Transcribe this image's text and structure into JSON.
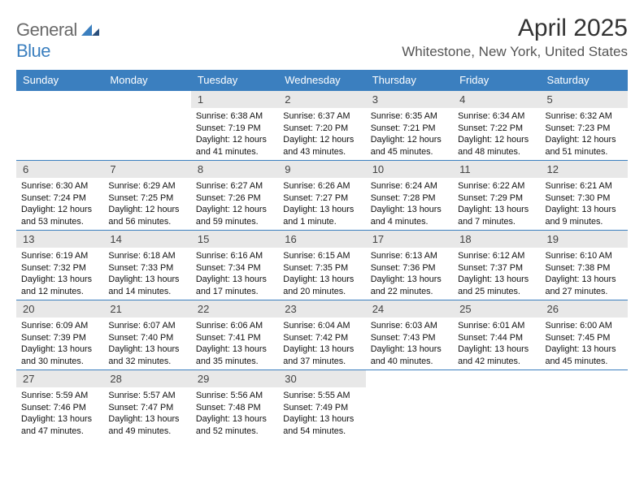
{
  "logo": {
    "part1": "General",
    "part2": "Blue"
  },
  "title": "April 2025",
  "location": "Whitestone, New York, United States",
  "colors": {
    "header_bg": "#3b7fbf",
    "daynum_bg": "#e8e8e8",
    "border": "#3b7fbf"
  },
  "dayNames": [
    "Sunday",
    "Monday",
    "Tuesday",
    "Wednesday",
    "Thursday",
    "Friday",
    "Saturday"
  ],
  "weeks": [
    [
      {
        "n": "",
        "empty": true
      },
      {
        "n": "",
        "empty": true
      },
      {
        "n": "1",
        "sr": "Sunrise: 6:38 AM",
        "ss": "Sunset: 7:19 PM",
        "dl": "Daylight: 12 hours and 41 minutes."
      },
      {
        "n": "2",
        "sr": "Sunrise: 6:37 AM",
        "ss": "Sunset: 7:20 PM",
        "dl": "Daylight: 12 hours and 43 minutes."
      },
      {
        "n": "3",
        "sr": "Sunrise: 6:35 AM",
        "ss": "Sunset: 7:21 PM",
        "dl": "Daylight: 12 hours and 45 minutes."
      },
      {
        "n": "4",
        "sr": "Sunrise: 6:34 AM",
        "ss": "Sunset: 7:22 PM",
        "dl": "Daylight: 12 hours and 48 minutes."
      },
      {
        "n": "5",
        "sr": "Sunrise: 6:32 AM",
        "ss": "Sunset: 7:23 PM",
        "dl": "Daylight: 12 hours and 51 minutes."
      }
    ],
    [
      {
        "n": "6",
        "sr": "Sunrise: 6:30 AM",
        "ss": "Sunset: 7:24 PM",
        "dl": "Daylight: 12 hours and 53 minutes."
      },
      {
        "n": "7",
        "sr": "Sunrise: 6:29 AM",
        "ss": "Sunset: 7:25 PM",
        "dl": "Daylight: 12 hours and 56 minutes."
      },
      {
        "n": "8",
        "sr": "Sunrise: 6:27 AM",
        "ss": "Sunset: 7:26 PM",
        "dl": "Daylight: 12 hours and 59 minutes."
      },
      {
        "n": "9",
        "sr": "Sunrise: 6:26 AM",
        "ss": "Sunset: 7:27 PM",
        "dl": "Daylight: 13 hours and 1 minute."
      },
      {
        "n": "10",
        "sr": "Sunrise: 6:24 AM",
        "ss": "Sunset: 7:28 PM",
        "dl": "Daylight: 13 hours and 4 minutes."
      },
      {
        "n": "11",
        "sr": "Sunrise: 6:22 AM",
        "ss": "Sunset: 7:29 PM",
        "dl": "Daylight: 13 hours and 7 minutes."
      },
      {
        "n": "12",
        "sr": "Sunrise: 6:21 AM",
        "ss": "Sunset: 7:30 PM",
        "dl": "Daylight: 13 hours and 9 minutes."
      }
    ],
    [
      {
        "n": "13",
        "sr": "Sunrise: 6:19 AM",
        "ss": "Sunset: 7:32 PM",
        "dl": "Daylight: 13 hours and 12 minutes."
      },
      {
        "n": "14",
        "sr": "Sunrise: 6:18 AM",
        "ss": "Sunset: 7:33 PM",
        "dl": "Daylight: 13 hours and 14 minutes."
      },
      {
        "n": "15",
        "sr": "Sunrise: 6:16 AM",
        "ss": "Sunset: 7:34 PM",
        "dl": "Daylight: 13 hours and 17 minutes."
      },
      {
        "n": "16",
        "sr": "Sunrise: 6:15 AM",
        "ss": "Sunset: 7:35 PM",
        "dl": "Daylight: 13 hours and 20 minutes."
      },
      {
        "n": "17",
        "sr": "Sunrise: 6:13 AM",
        "ss": "Sunset: 7:36 PM",
        "dl": "Daylight: 13 hours and 22 minutes."
      },
      {
        "n": "18",
        "sr": "Sunrise: 6:12 AM",
        "ss": "Sunset: 7:37 PM",
        "dl": "Daylight: 13 hours and 25 minutes."
      },
      {
        "n": "19",
        "sr": "Sunrise: 6:10 AM",
        "ss": "Sunset: 7:38 PM",
        "dl": "Daylight: 13 hours and 27 minutes."
      }
    ],
    [
      {
        "n": "20",
        "sr": "Sunrise: 6:09 AM",
        "ss": "Sunset: 7:39 PM",
        "dl": "Daylight: 13 hours and 30 minutes."
      },
      {
        "n": "21",
        "sr": "Sunrise: 6:07 AM",
        "ss": "Sunset: 7:40 PM",
        "dl": "Daylight: 13 hours and 32 minutes."
      },
      {
        "n": "22",
        "sr": "Sunrise: 6:06 AM",
        "ss": "Sunset: 7:41 PM",
        "dl": "Daylight: 13 hours and 35 minutes."
      },
      {
        "n": "23",
        "sr": "Sunrise: 6:04 AM",
        "ss": "Sunset: 7:42 PM",
        "dl": "Daylight: 13 hours and 37 minutes."
      },
      {
        "n": "24",
        "sr": "Sunrise: 6:03 AM",
        "ss": "Sunset: 7:43 PM",
        "dl": "Daylight: 13 hours and 40 minutes."
      },
      {
        "n": "25",
        "sr": "Sunrise: 6:01 AM",
        "ss": "Sunset: 7:44 PM",
        "dl": "Daylight: 13 hours and 42 minutes."
      },
      {
        "n": "26",
        "sr": "Sunrise: 6:00 AM",
        "ss": "Sunset: 7:45 PM",
        "dl": "Daylight: 13 hours and 45 minutes."
      }
    ],
    [
      {
        "n": "27",
        "sr": "Sunrise: 5:59 AM",
        "ss": "Sunset: 7:46 PM",
        "dl": "Daylight: 13 hours and 47 minutes."
      },
      {
        "n": "28",
        "sr": "Sunrise: 5:57 AM",
        "ss": "Sunset: 7:47 PM",
        "dl": "Daylight: 13 hours and 49 minutes."
      },
      {
        "n": "29",
        "sr": "Sunrise: 5:56 AM",
        "ss": "Sunset: 7:48 PM",
        "dl": "Daylight: 13 hours and 52 minutes."
      },
      {
        "n": "30",
        "sr": "Sunrise: 5:55 AM",
        "ss": "Sunset: 7:49 PM",
        "dl": "Daylight: 13 hours and 54 minutes."
      },
      {
        "n": "",
        "empty": true
      },
      {
        "n": "",
        "empty": true
      },
      {
        "n": "",
        "empty": true
      }
    ]
  ]
}
